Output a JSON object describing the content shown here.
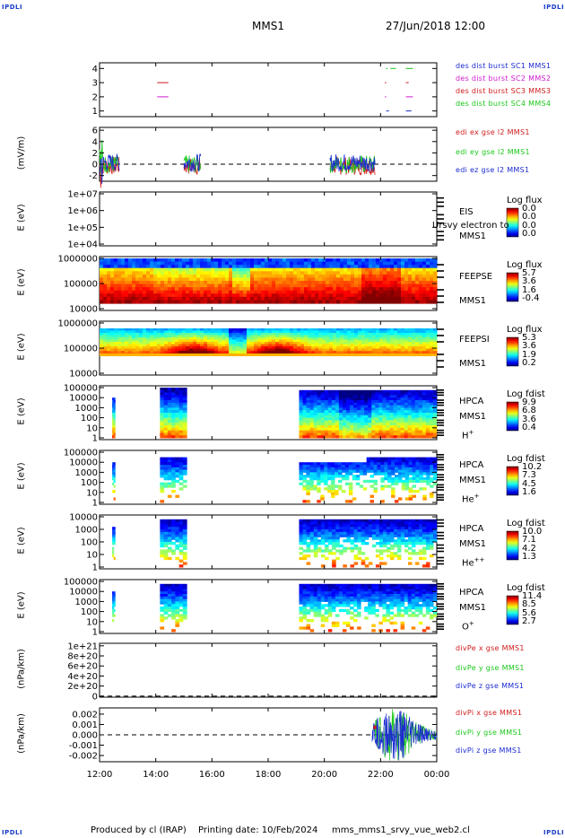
{
  "page": {
    "corner_label": "IPDLI",
    "mission": "MMS1",
    "datetime": "27/Jun/2018 12:00",
    "footer": {
      "produced_by": "Produced by cl (IRAP)",
      "printing_date": "Printing date: 10/Feb/2024",
      "file": "mms_mms1_srvy_vue_web2.cl"
    }
  },
  "chart_data": [
    {
      "type": "line",
      "ylabel": "",
      "yticks": [
        "4",
        "3",
        "2",
        "1"
      ],
      "ylim": [
        0.6,
        4.4
      ],
      "series": [
        {
          "name": "des dist burst SC1 MMS1",
          "color": "#1a2ad0"
        },
        {
          "name": "des dist burst SC2 MMS2",
          "color": "#d01ad0"
        },
        {
          "name": "des dist burst SC3 MMS3",
          "color": "#d01a1a"
        },
        {
          "name": "des dist burst SC4 MMS4",
          "color": "#1ac81a"
        }
      ]
    },
    {
      "type": "line",
      "ylabel": "(mV/m)",
      "yticks": [
        "6",
        "4",
        "2",
        "0",
        "-2"
      ],
      "ylim": [
        -3,
        6.5
      ],
      "series": [
        {
          "name": "edi ex gse l2 MMS1",
          "color": "#d01a1a"
        },
        {
          "name": "edi ey gse l2 MMS1",
          "color": "#1ac81a"
        },
        {
          "name": "edi ez gse l2 MMS1",
          "color": "#1a2ad0"
        }
      ]
    },
    {
      "type": "heatmap",
      "ylabel": "E (eV)",
      "yscale": "log",
      "yticks": [
        "1e+07",
        "1e+06",
        "1e+05",
        "1e+04"
      ],
      "instrument": [
        "EIS",
        "MMS1"
      ],
      "note": "Ursvy electron to",
      "colorbar": {
        "title": "Log flux",
        "ticks": [
          "0.0",
          "0.0",
          "0.0",
          "0.0"
        ]
      }
    },
    {
      "type": "heatmap",
      "ylabel": "E (eV)",
      "yscale": "log",
      "yticks": [
        "1000000",
        "100000",
        "10000"
      ],
      "instrument": [
        "FEEPSE",
        "MMS1"
      ],
      "colorbar": {
        "title": "Log flux",
        "ticks": [
          "5.7",
          "3.6",
          "1.6",
          "-0.4"
        ]
      }
    },
    {
      "type": "heatmap",
      "ylabel": "E (eV)",
      "yscale": "log",
      "yticks": [
        "1000000",
        "100000",
        "10000"
      ],
      "instrument": [
        "FEEPSI",
        "MMS1"
      ],
      "colorbar": {
        "title": "Log flux",
        "ticks": [
          "5.3",
          "3.6",
          "1.9",
          "0.2"
        ]
      }
    },
    {
      "type": "heatmap",
      "ylabel": "E (eV)",
      "yscale": "log",
      "yticks": [
        "100000",
        "10000",
        "1000",
        "100",
        "10",
        "1"
      ],
      "instrument": [
        "HPCA",
        "MMS1"
      ],
      "species": "H",
      "species_sup": "+",
      "colorbar": {
        "title": "Log fdist",
        "ticks": [
          "9.9",
          "6.8",
          "3.6",
          "0.4"
        ]
      }
    },
    {
      "type": "heatmap",
      "ylabel": "E (eV)",
      "yscale": "log",
      "yticks": [
        "100000",
        "10000",
        "1000",
        "100",
        "10",
        "1"
      ],
      "instrument": [
        "HPCA",
        "MMS1"
      ],
      "species": "He",
      "species_sup": "+",
      "colorbar": {
        "title": "Log fdist",
        "ticks": [
          "10.2",
          "7.3",
          "4.5",
          "1.6"
        ]
      }
    },
    {
      "type": "heatmap",
      "ylabel": "E (eV)",
      "yscale": "log",
      "yticks": [
        "10000",
        "1000",
        "100",
        "10",
        "1"
      ],
      "instrument": [
        "HPCA",
        "MMS1"
      ],
      "species": "He",
      "species_sup": "++",
      "colorbar": {
        "title": "Log fdist",
        "ticks": [
          "10.0",
          "7.1",
          "4.2",
          "1.3"
        ]
      }
    },
    {
      "type": "heatmap",
      "ylabel": "E (eV)",
      "yscale": "log",
      "yticks": [
        "100000",
        "10000",
        "1000",
        "100",
        "10",
        "1"
      ],
      "instrument": [
        "HPCA",
        "MMS1"
      ],
      "species": "O",
      "species_sup": "+",
      "colorbar": {
        "title": "Log fdist",
        "ticks": [
          "11.4",
          "8.5",
          "5.6",
          "2.7"
        ]
      }
    },
    {
      "type": "line",
      "ylabel": "(nPa/km)",
      "yticks": [
        "1e+21",
        "8e+20",
        "6e+20",
        "4e+20",
        "2e+20",
        "0"
      ],
      "ylim": [
        -2e+19,
        1.05e+21
      ],
      "series": [
        {
          "name": "divPe x gse MMS1",
          "color": "#d01a1a"
        },
        {
          "name": "divPe y gse MMS1",
          "color": "#1ac81a"
        },
        {
          "name": "divPe z gse MMS1",
          "color": "#1a2ad0"
        }
      ]
    },
    {
      "type": "line",
      "ylabel": "(nPa/km)",
      "yticks": [
        "0.002",
        "0.001",
        "0.000",
        "-0.001",
        "-0.002"
      ],
      "ylim": [
        -0.0026,
        0.0026
      ],
      "series": [
        {
          "name": "divPi x gse MMS1",
          "color": "#d01a1a"
        },
        {
          "name": "divPi y gse MMS1",
          "color": "#1ac81a"
        },
        {
          "name": "divPi z gse MMS1",
          "color": "#1a2ad0"
        }
      ]
    }
  ],
  "xaxis": {
    "ticks": [
      "12:00",
      "14:00",
      "16:00",
      "18:00",
      "20:00",
      "22:00",
      "00:00"
    ],
    "range_hours": [
      12,
      24
    ]
  }
}
